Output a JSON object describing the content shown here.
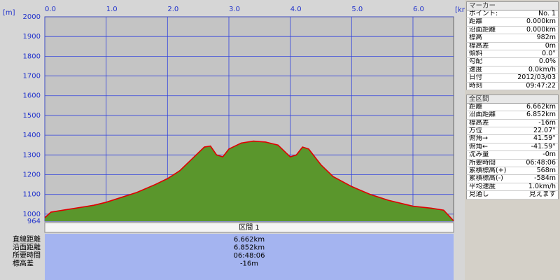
{
  "chart_data": {
    "type": "area",
    "x_unit": "[km]",
    "y_unit": "[m]",
    "x": [
      0,
      0.1,
      0.3,
      0.5,
      0.8,
      1.0,
      1.2,
      1.5,
      1.8,
      2.0,
      2.2,
      2.4,
      2.6,
      2.7,
      2.8,
      2.9,
      3.0,
      3.2,
      3.4,
      3.6,
      3.8,
      4.0,
      4.1,
      4.2,
      4.3,
      4.5,
      4.7,
      5.0,
      5.3,
      5.6,
      6.0,
      6.3,
      6.5,
      6.662
    ],
    "values": [
      982,
      1010,
      1020,
      1030,
      1045,
      1060,
      1080,
      1110,
      1150,
      1180,
      1220,
      1280,
      1340,
      1345,
      1300,
      1290,
      1330,
      1360,
      1370,
      1365,
      1350,
      1290,
      1300,
      1340,
      1330,
      1250,
      1190,
      1140,
      1100,
      1070,
      1040,
      1030,
      1020,
      966
    ],
    "color": "#5a962c",
    "line_color": "#e00000",
    "grid": true,
    "xlim": [
      0,
      6.662
    ],
    "xticks": [
      {
        "value": 0,
        "label": "0.0"
      },
      {
        "value": 1,
        "label": "1.0"
      },
      {
        "value": 2,
        "label": "2.0"
      },
      {
        "value": 3,
        "label": "3.0"
      },
      {
        "value": 4,
        "label": "4.0"
      },
      {
        "value": 5,
        "label": "5.0"
      },
      {
        "value": 6,
        "label": "6.0"
      }
    ],
    "ylim": [
      964,
      2000
    ],
    "yticks": [
      964,
      1000,
      1100,
      1200,
      1300,
      1400,
      1500,
      1600,
      1700,
      1800,
      1900,
      2000
    ]
  },
  "section": {
    "title": "区間 1",
    "rows": [
      [
        "直線距離",
        "6.662km"
      ],
      [
        "沿面距離",
        "6.852km"
      ],
      [
        "所要時間",
        "06:48:06"
      ],
      [
        "標高差",
        "-16m"
      ]
    ]
  },
  "marker": {
    "title": "マーカー",
    "rows": [
      [
        "ポイント:",
        "No. 1"
      ],
      [
        "距離",
        "0.000km"
      ],
      [
        "沿面距離",
        "0.000km"
      ],
      [
        "標高",
        "982m"
      ],
      [
        "標高差",
        "0m"
      ],
      [
        "傾斜",
        "0.0°"
      ],
      [
        "勾配",
        "0.0%"
      ],
      [
        "速度",
        "0.0km/h"
      ],
      [
        "日付",
        "2012/03/03"
      ],
      [
        "時刻",
        "09:47:22"
      ]
    ]
  },
  "total": {
    "title": "全区間",
    "rows": [
      [
        "距離",
        "6.662km"
      ],
      [
        "沿面距離",
        "6.852km"
      ],
      [
        "標高差",
        "-16m"
      ],
      [
        "方位",
        "22.07°"
      ],
      [
        "俯角→",
        "41.59°"
      ],
      [
        "俯角←",
        "-41.59°"
      ],
      [
        "沈み量",
        "-0m"
      ],
      [
        "所要時間",
        "06:48:06"
      ],
      [
        "累積標高(+)",
        "568m"
      ],
      [
        "累積標高(-)",
        "-584m"
      ],
      [
        "平均速度",
        "1.0km/h"
      ],
      [
        "見通し",
        "見えます"
      ]
    ]
  }
}
